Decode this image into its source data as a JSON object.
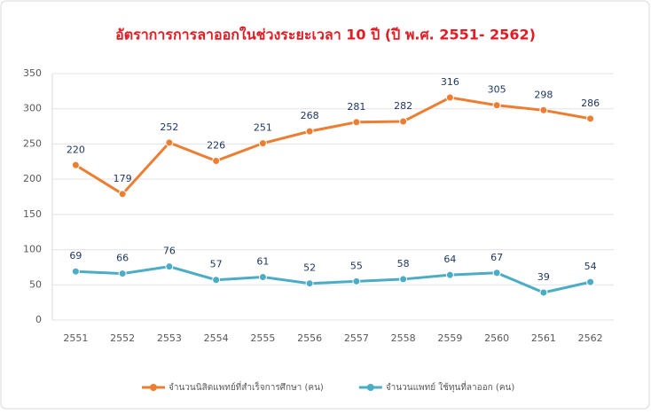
{
  "chart_data": {
    "type": "line",
    "title": "อัตราการการลาออกในช่วงระยะเวลา 10 ปี   (ปี พ.ศ. 2551- 2562)",
    "categories": [
      "2551",
      "2552",
      "2553",
      "2554",
      "2555",
      "2556",
      "2557",
      "2558",
      "2559",
      "2560",
      "2561",
      "2562"
    ],
    "series": [
      {
        "name": "จำนวนนิสิตแพทย์ที่สำเร็จการศึกษา (คน)",
        "color": "#ed7d31",
        "values": [
          220,
          179,
          252,
          226,
          251,
          268,
          281,
          282,
          316,
          305,
          298,
          286
        ]
      },
      {
        "name": "จำนวนแพทย์ ใช้ทุนที่ลาออก (คน)",
        "color": "#4bacc6",
        "values": [
          69,
          66,
          76,
          57,
          61,
          52,
          55,
          58,
          64,
          67,
          39,
          54
        ]
      }
    ],
    "ylim": [
      0,
      350
    ],
    "yticks": [
      0,
      50,
      100,
      150,
      200,
      250,
      300,
      350
    ],
    "grid": true,
    "legend": "bottom"
  }
}
